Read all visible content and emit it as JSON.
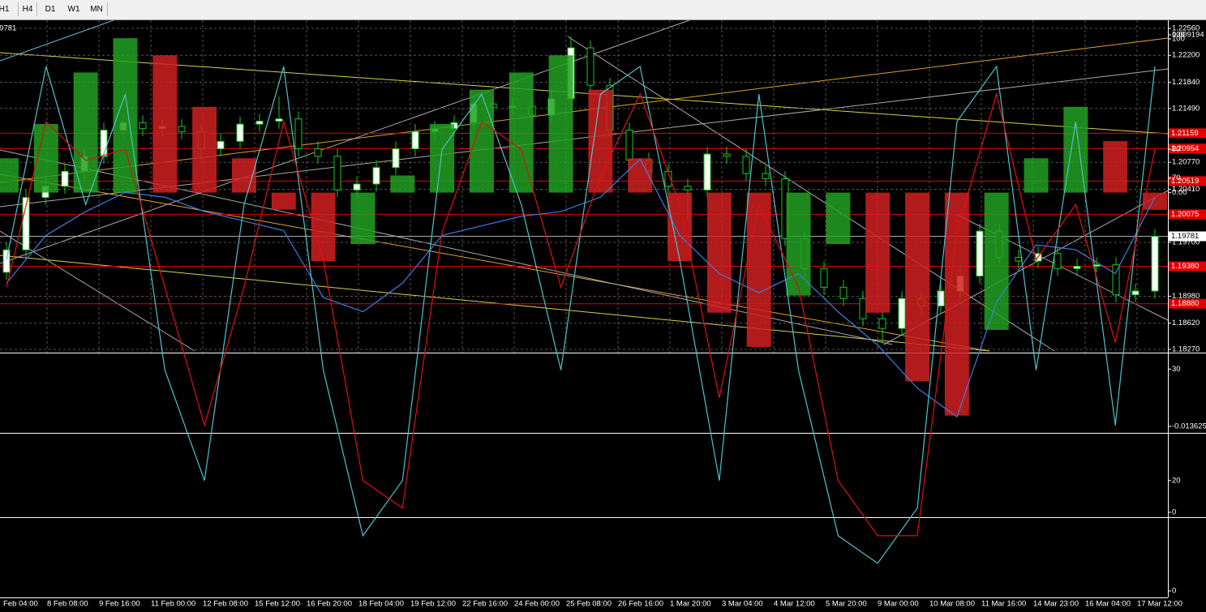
{
  "toolbar": {
    "buttons": [
      "H1",
      "H4",
      "D1",
      "W1",
      "MN"
    ]
  },
  "chart_data": [
    {
      "type": "candlestick",
      "bull_color": "#ffffff",
      "bear_color": "#000000",
      "edge_color": "#18c818",
      "grid": true,
      "ylim": [
        1.1827,
        1.2256
      ],
      "yticks": [
        {
          "value": 1.2256,
          "label": "1.22560"
        },
        {
          "value": 1.222,
          "label": "1.22200"
        },
        {
          "value": 1.2184,
          "label": "1.21840"
        },
        {
          "value": 1.2149,
          "label": "1.21490"
        },
        {
          "value": 1.2077,
          "label": "1.20770"
        },
        {
          "value": 1.2041,
          "label": "1.20410"
        },
        {
          "value": 1.197,
          "label": "1.19700"
        },
        {
          "value": 1.1898,
          "label": "1.18980"
        },
        {
          "value": 1.1862,
          "label": "1.18620"
        },
        {
          "value": 1.1827,
          "label": "1.18270"
        }
      ],
      "levels": [
        {
          "value": 1.21159,
          "label": "1.21159"
        },
        {
          "value": 1.20954,
          "label": "1.20954"
        },
        {
          "value": 1.20519,
          "label": "1.20519"
        },
        {
          "value": 1.20075,
          "label": "1.20075"
        },
        {
          "value": 1.1938,
          "label": "1.19380"
        },
        {
          "value": 1.1888,
          "label": "1.18880"
        }
      ],
      "level_color": "#e00000",
      "last": {
        "value": 1.19781,
        "label": "1.19781"
      },
      "open": [
        1.193,
        1.196,
        1.203,
        1.2045,
        1.2065,
        1.2085,
        1.212,
        1.213,
        1.2122,
        1.2125,
        1.2118,
        1.2095,
        1.2105,
        1.2128,
        1.2132,
        1.2135,
        1.2095,
        1.2085,
        1.204,
        1.2048,
        1.207,
        1.2095,
        1.2118,
        1.2122,
        1.213,
        1.2155,
        1.215,
        1.2152,
        1.214,
        1.2162,
        1.223,
        1.218,
        1.212,
        1.208,
        1.2065,
        1.2045,
        1.204,
        1.2088,
        1.2085,
        1.2062,
        1.2055,
        1.1975,
        1.1935,
        1.191,
        1.1895,
        1.1868,
        1.1855,
        1.1895,
        1.1885,
        1.1905,
        1.1925,
        1.1985,
        1.195,
        1.1945,
        1.1955,
        1.1935,
        1.1938,
        1.194,
        1.19,
        1.1905
      ],
      "high": [
        1.197,
        1.204,
        1.2055,
        1.2075,
        1.2095,
        1.213,
        1.214,
        1.214,
        1.2135,
        1.2135,
        1.2128,
        1.2115,
        1.2138,
        1.2142,
        1.2165,
        1.2145,
        1.2105,
        1.2095,
        1.2058,
        1.208,
        1.2105,
        1.2128,
        1.2132,
        1.214,
        1.2165,
        1.2165,
        1.2162,
        1.2162,
        1.2172,
        1.2245,
        1.224,
        1.219,
        1.213,
        1.209,
        1.2075,
        1.2055,
        1.2098,
        1.2098,
        1.2095,
        1.2072,
        1.2065,
        1.1985,
        1.1945,
        1.192,
        1.1905,
        1.1878,
        1.1905,
        1.1905,
        1.1915,
        1.1935,
        1.1995,
        1.1995,
        1.196,
        1.1965,
        1.1965,
        1.1948,
        1.195,
        1.195,
        1.1915,
        1.1988
      ],
      "low": [
        1.192,
        1.195,
        1.202,
        1.2035,
        1.2055,
        1.2075,
        1.211,
        1.2112,
        1.2112,
        1.2108,
        1.2085,
        1.2085,
        1.2095,
        1.2118,
        1.2122,
        1.2085,
        1.2075,
        1.203,
        1.203,
        1.2038,
        1.206,
        1.2085,
        1.2108,
        1.2112,
        1.212,
        1.214,
        1.214,
        1.213,
        1.213,
        1.2152,
        1.217,
        1.211,
        1.207,
        1.2055,
        1.2035,
        1.2,
        1.203,
        1.2075,
        1.2052,
        1.2045,
        1.1965,
        1.1925,
        1.19,
        1.1885,
        1.1858,
        1.1835,
        1.1845,
        1.1875,
        1.1875,
        1.1895,
        1.1915,
        1.194,
        1.1935,
        1.1935,
        1.1925,
        1.1925,
        1.193,
        1.189,
        1.189,
        1.1895
      ],
      "close": [
        1.196,
        1.203,
        1.2045,
        1.2065,
        1.2085,
        1.212,
        1.213,
        1.2122,
        1.2125,
        1.2118,
        1.2095,
        1.2105,
        1.2128,
        1.2132,
        1.2135,
        1.2095,
        1.2085,
        1.204,
        1.2048,
        1.207,
        1.2095,
        1.2118,
        1.2122,
        1.213,
        1.2155,
        1.215,
        1.2152,
        1.214,
        1.2162,
        1.223,
        1.218,
        1.212,
        1.208,
        1.2065,
        1.2045,
        1.204,
        1.2088,
        1.2085,
        1.2062,
        1.2055,
        1.1975,
        1.1935,
        1.191,
        1.1895,
        1.1868,
        1.1855,
        1.1895,
        1.1885,
        1.1905,
        1.1925,
        1.1985,
        1.195,
        1.1945,
        1.1955,
        1.1935,
        1.1938,
        1.194,
        1.19,
        1.1905,
        1.1978
      ],
      "x_labels": [
        "Feb 04:00",
        "8 Feb 08:00",
        "9 Feb 16:00",
        "11 Feb 00:00",
        "12 Feb 08:00",
        "15 Feb 12:00",
        "16 Feb 20:00",
        "18 Feb 04:00",
        "19 Feb 12:00",
        "22 Feb 16:00",
        "24 Feb 00:00",
        "25 Feb 08:00",
        "26 Feb 16:00",
        "1 Mar 20:00",
        "3 Mar 04:00",
        "4 Mar 12:00",
        "5 Mar 20:00",
        "9 Mar 00:00",
        "10 Mar 08:00",
        "11 Mar 16:00",
        "14 Mar 23:00",
        "16 Mar 04:00",
        "17 Mar 12:00"
      ]
    },
    {
      "type": "histogram",
      "up_color": "#22a022",
      "down_color": "#d02020",
      "ylim": [
        -0.013625,
        0.009194
      ],
      "yticks": [
        0.009194,
        {
          "value": 0,
          "label": "0.00"
        },
        -0.013625
      ],
      "values": [
        0.002,
        0.004,
        0.007,
        0.009,
        0.008,
        0.005,
        0.002,
        -0.001,
        -0.004,
        -0.003,
        0.001,
        0.004,
        0.006,
        0.007,
        0.008,
        0.006,
        0.002,
        -0.004,
        -0.007,
        -0.009,
        -0.006,
        -0.003,
        -0.007,
        -0.011,
        -0.013,
        -0.008,
        0.002,
        0.005,
        0.003,
        -0.001
      ]
    },
    {
      "type": "line",
      "ylim": [
        0,
        100
      ],
      "yticks": [
        100,
        70,
        30,
        0
      ],
      "series": [
        {
          "color": "#3a7fe0",
          "values": [
            48,
            58,
            63,
            67,
            66,
            63,
            61,
            59,
            45,
            42,
            48,
            58,
            60,
            62,
            63,
            66,
            74,
            58,
            50,
            46,
            50,
            42,
            35,
            26,
            20,
            44,
            56,
            55,
            50,
            66
          ]
        }
      ]
    },
    {
      "type": "line",
      "ylim": [
        0,
        100
      ],
      "yticks": [
        100,
        80,
        20,
        0
      ],
      "series": [
        {
          "color": "#4fc3c8",
          "values": [
            60,
            95,
            70,
            90,
            40,
            20,
            70,
            95,
            40,
            10,
            20,
            80,
            90,
            70,
            40,
            90,
            95,
            60,
            20,
            90,
            40,
            10,
            5,
            15,
            85,
            95,
            40,
            85,
            30,
            95
          ]
        },
        {
          "color": "#e01010",
          "values": [
            55,
            85,
            78,
            80,
            55,
            30,
            55,
            85,
            60,
            20,
            15,
            65,
            85,
            80,
            55,
            75,
            90,
            70,
            35,
            70,
            55,
            20,
            10,
            10,
            65,
            90,
            60,
            70,
            45,
            80
          ]
        }
      ]
    }
  ]
}
